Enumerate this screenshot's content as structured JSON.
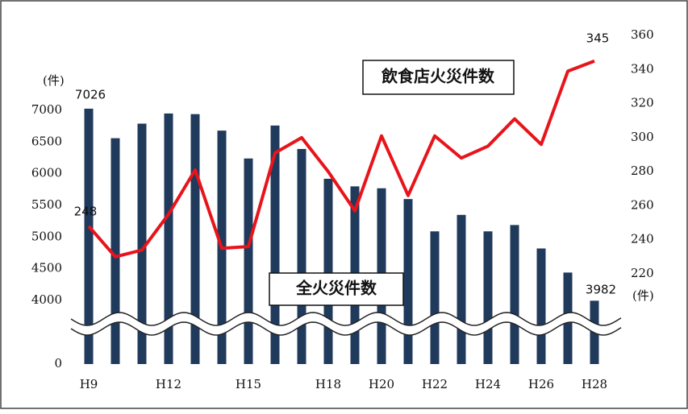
{
  "chart_data": {
    "type": "bar-line",
    "categories": [
      "H9",
      null,
      null,
      "H12",
      null,
      null,
      "H15",
      null,
      null,
      "H18",
      null,
      "H20",
      null,
      "H22",
      null,
      "H24",
      null,
      "H26",
      null,
      "H28"
    ],
    "series": [
      {
        "name": "全火災件数",
        "color": "#203a5c",
        "type": "bar",
        "values": [
          7026,
          6560,
          6790,
          6950,
          6940,
          6680,
          6240,
          6760,
          6390,
          5920,
          5800,
          5770,
          5600,
          5090,
          5350,
          5090,
          5190,
          4820,
          4440,
          3982
        ]
      },
      {
        "name": "飲食店火災件数",
        "color": "#e8141b",
        "type": "line",
        "axis": "y2",
        "values": [
          248,
          230,
          234,
          255,
          281,
          235,
          236,
          291,
          300,
          280,
          257,
          301,
          266,
          301,
          288,
          295,
          311,
          296,
          339,
          345
        ]
      }
    ],
    "y_unit": "(件)",
    "y2_unit": "(件)",
    "ylim": [
      0,
      8000
    ],
    "yticks": [
      0,
      4000,
      4500,
      5000,
      5500,
      6000,
      6500,
      7000
    ],
    "axis_break": 4000,
    "y2lim": [
      220,
      360
    ],
    "y2ticks": [
      220,
      240,
      260,
      280,
      300,
      320,
      340,
      360
    ],
    "grid": false
  }
}
